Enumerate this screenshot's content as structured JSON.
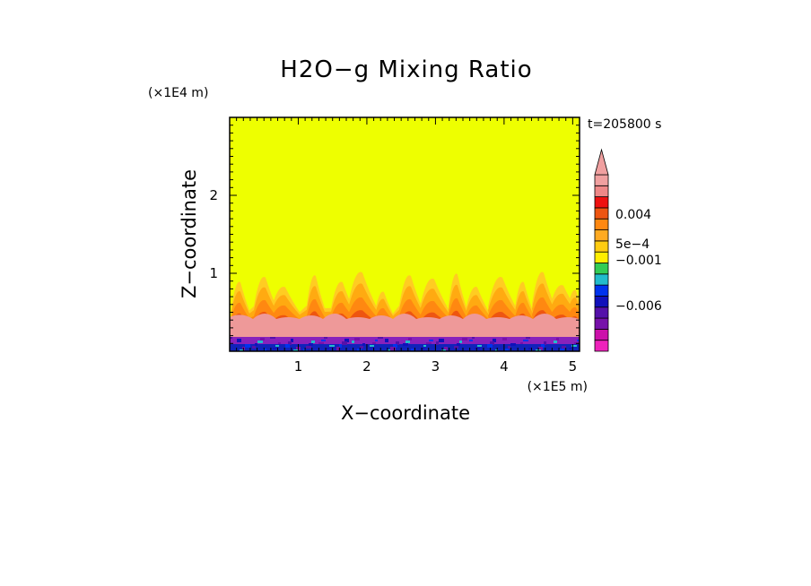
{
  "chart_data": {
    "type": "heatmap",
    "title": "H2O−g Mixing Ratio",
    "xlabel": "X−coordinate",
    "ylabel": "Z−coordinate",
    "x_unit": "(×1E5 m)",
    "y_unit": "(×1E4 m)",
    "time_label": "t=205800 s",
    "xlim": [
      0,
      5.1
    ],
    "ylim": [
      0,
      3.0
    ],
    "x_ticks": [
      1,
      2,
      3,
      4,
      5
    ],
    "y_ticks": [
      1,
      2
    ],
    "x_tick_labels": [
      "1",
      "2",
      "3",
      "4",
      "5"
    ],
    "y_tick_labels": [
      "1",
      "2"
    ],
    "background_level": "yellow",
    "colorbar": {
      "colors": [
        "#ee22bb",
        "#cc11aa",
        "#7711aa",
        "#5511aa",
        "#1111bb",
        "#0033ee",
        "#22bbcc",
        "#33cc55",
        "#ffee00",
        "#ffcc11",
        "#ffaa22",
        "#ff8811",
        "#ee5511",
        "#ee1111",
        "#ee8888",
        "#f0a0a0"
      ],
      "tick_labels": [
        "0.004",
        "5e−4",
        "−0.001",
        "−0.006"
      ],
      "extend": "max"
    }
  }
}
